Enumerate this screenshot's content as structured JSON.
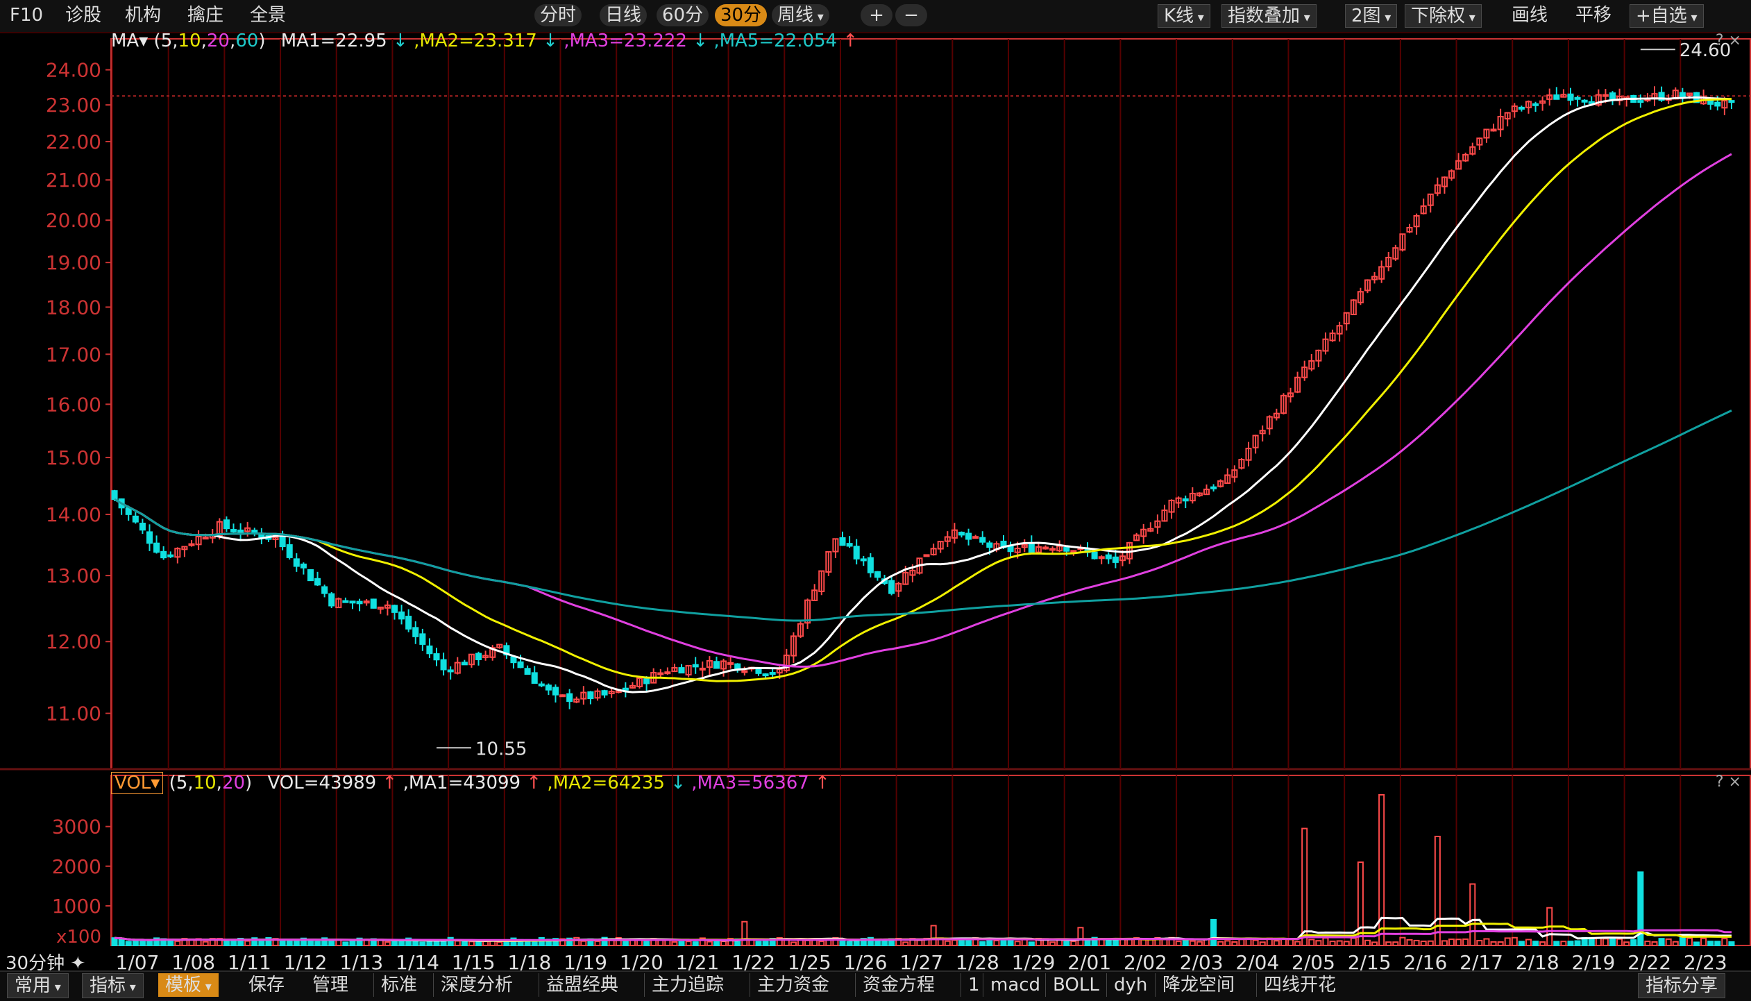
{
  "toolbar": {
    "f10": "F10",
    "diagnose": "诊股",
    "institution": "机构",
    "catch": "擒庄",
    "panorama": "全景",
    "period_tabs": [
      "分时",
      "日线",
      "60分",
      "30分",
      "周线"
    ],
    "active_period": "30分",
    "zoom_in": "+",
    "zoom_out": "−",
    "kline": "K线",
    "index_overlay": "指数叠加",
    "two_charts": "2图",
    "exrights": "下除权",
    "draw": "画线",
    "pan": "平移",
    "watchlist": "+自选"
  },
  "ma_legend": {
    "label": "MA",
    "params_open": "(",
    "p1": "5",
    "p2": "10",
    "p3": "20",
    "p4": "60",
    "params_close": ")",
    "ma1": "MA1=22.95",
    "ma1_dir": "↓",
    "ma2": ",MA2=23.317",
    "ma2_dir": "↓",
    "ma3": ",MA3=23.222",
    "ma3_dir": "↓",
    "ma5": ",MA5=22.054",
    "ma5_dir": "↑"
  },
  "vol_legend": {
    "label": "VOL",
    "params_open": "(",
    "p1": "5",
    "p2": "10",
    "p3": "20",
    "params_close": ")",
    "vol": "VOL=43989",
    "vol_dir": "↑",
    "ma1": ",MA1=43099",
    "ma1_dir": "↑",
    "ma2": ",MA2=64235",
    "ma2_dir": "↓",
    "ma3": ",MA3=56367",
    "ma3_dir": "↑"
  },
  "corner_marks": "? ×",
  "chart_data": {
    "type": "candlestick",
    "price_axis": {
      "ticks": [
        24.0,
        23.0,
        22.0,
        21.0,
        20.0,
        19.0,
        18.0,
        17.0,
        16.0,
        15.0,
        14.0,
        13.0,
        12.0,
        11.0
      ],
      "tick_labels": [
        "24.00",
        "23.00",
        "22.00",
        "21.00",
        "20.00",
        "19.00",
        "18.00",
        "17.00",
        "16.00",
        "15.00",
        "14.00",
        "13.00",
        "12.00",
        "11.00"
      ],
      "range": [
        10.35,
        24.75
      ],
      "scale": "log"
    },
    "high_label": "24.60",
    "high_value": 24.6,
    "low_label": "10.55",
    "low_value": 10.55,
    "dates": [
      "1/07",
      "1/08",
      "1/11",
      "1/12",
      "1/13",
      "1/14",
      "1/15",
      "1/18",
      "1/19",
      "1/20",
      "1/21",
      "1/22",
      "1/25",
      "1/26",
      "1/27",
      "1/28",
      "1/29",
      "2/01",
      "2/02",
      "2/03",
      "2/04",
      "2/05",
      "2/15",
      "2/16",
      "2/17",
      "2/18",
      "2/19",
      "2/22",
      "2/23"
    ],
    "period_label": "30分钟",
    "daily_closes": [
      13.3,
      13.8,
      13.6,
      12.6,
      12.55,
      11.6,
      11.9,
      11.2,
      11.25,
      11.6,
      11.7,
      11.55,
      13.6,
      12.8,
      13.7,
      13.4,
      13.5,
      13.2,
      14.2,
      14.6,
      16.1,
      17.6,
      19.4,
      21.3,
      22.8,
      23.3,
      23.1,
      23.3,
      22.95
    ],
    "volume_axis": {
      "ticks": [
        3000,
        2000,
        1000
      ],
      "tick_labels": [
        "3000",
        "2000",
        "1000"
      ],
      "unit": "x100",
      "range": [
        0,
        3800
      ]
    },
    "volume_spikes": [
      {
        "date": "1/22",
        "value": 600
      },
      {
        "date": "1/27",
        "value": 500
      },
      {
        "date": "2/01",
        "value": 450
      },
      {
        "date": "2/03",
        "value": 650
      },
      {
        "date": "2/05",
        "value": 2950
      },
      {
        "date": "2/15",
        "value": 3800
      },
      {
        "date": "2/15",
        "value": 2100
      },
      {
        "date": "2/16",
        "value": 2750
      },
      {
        "date": "2/17",
        "value": 1550
      },
      {
        "date": "2/18",
        "value": 950
      },
      {
        "date": "2/22",
        "value": 1850
      }
    ],
    "colors": {
      "up": "#ff4a4a",
      "down": "#10e0e0",
      "ma5": "#ffffff",
      "ma10": "#f0f000",
      "ma20": "#e040e0",
      "ma60": "#10a0a0",
      "grid": "#550000",
      "axis": "#cc3333"
    },
    "grid": true
  },
  "bottombar": {
    "items": [
      "常用",
      "指标",
      "模板",
      "保存",
      "管理",
      "标准",
      "深度分析",
      "益盟经典",
      "主力追踪",
      "主力资金",
      "资金方程",
      "1",
      "macd",
      "BOLL",
      "dyh",
      "降龙空间",
      "四线开花",
      "指标分享"
    ],
    "active": "模板"
  }
}
